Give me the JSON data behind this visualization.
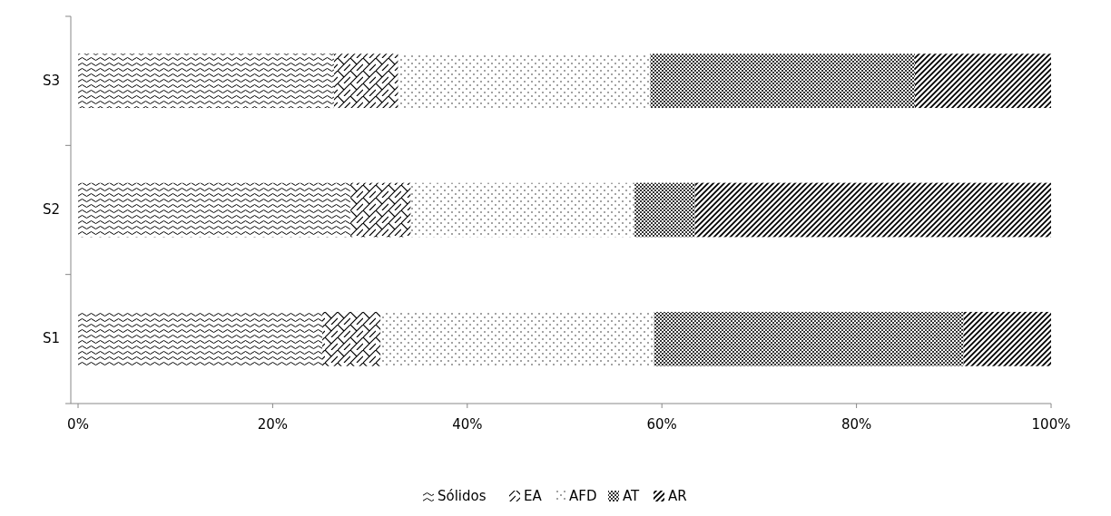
{
  "chart_data": {
    "type": "bar",
    "orientation": "horizontal",
    "stacked": true,
    "categories": [
      "S3",
      "S2",
      "S1"
    ],
    "series": [
      {
        "name": "Sólidos",
        "color": "#000000",
        "values": [
          26.3,
          28,
          25.1
        ]
      },
      {
        "name": "EA",
        "color": "#000000",
        "values": [
          6.6,
          6.2,
          6
        ]
      },
      {
        "name": "AFD",
        "color": "#000000",
        "values": [
          25.9,
          23,
          28.1
        ]
      },
      {
        "name": "AT",
        "color": "#000000",
        "values": [
          27.2,
          6.2,
          31.8
        ]
      },
      {
        "name": "AR",
        "color": "#000000",
        "values": [
          14,
          36.6,
          9
        ]
      }
    ],
    "xlim": [
      0,
      100
    ],
    "xticks": [
      {
        "value": 0,
        "label": "0%"
      },
      {
        "value": 20,
        "label": "20%"
      },
      {
        "value": 40,
        "label": "40%"
      },
      {
        "value": 60,
        "label": "60%"
      },
      {
        "value": 80,
        "label": "80%"
      },
      {
        "value": 100,
        "label": "100%"
      }
    ],
    "grid": false,
    "legend": "bottom"
  }
}
